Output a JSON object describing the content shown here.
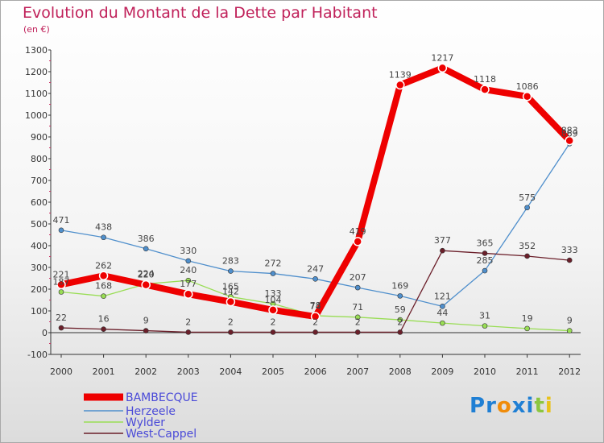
{
  "title": "Evolution du Montant de la Dette par Habitant",
  "subtitle": "(en €)",
  "brand": {
    "text": "Proxiti",
    "colors": [
      "#1f7fd4",
      "#1f7fd4",
      "#f08c0a",
      "#1f7fd4",
      "#1f7fd4",
      "#8cc63f",
      "#e8c21a"
    ]
  },
  "chart_data": {
    "type": "line",
    "title": "Evolution du Montant de la Dette par Habitant",
    "subtitle": "(en €)",
    "xlabel": "",
    "ylabel": "",
    "x": [
      "2000",
      "2001",
      "2002",
      "2003",
      "2004",
      "2005",
      "2006",
      "2007",
      "2008",
      "2009",
      "2010",
      "2011",
      "2012"
    ],
    "ylim": [
      -100,
      1300
    ],
    "yticks": [
      -100,
      0,
      100,
      200,
      300,
      400,
      500,
      600,
      700,
      800,
      900,
      1000,
      1100,
      1200,
      1300
    ],
    "grid": false,
    "legend": "bottom-left",
    "series": [
      {
        "name": "BAMBECQUE",
        "color": "#ee0000",
        "values": [
          221,
          262,
          220,
          177,
          142,
          104,
          74,
          419,
          1139,
          1217,
          1118,
          1086,
          883
        ]
      },
      {
        "name": "Herzeele",
        "color": "#4f8fcc",
        "values": [
          471,
          438,
          386,
          330,
          283,
          272,
          247,
          207,
          169,
          121,
          285,
          575,
          869
        ]
      },
      {
        "name": "Wylder",
        "color": "#99dd55",
        "values": [
          187,
          168,
          224,
          240,
          165,
          133,
          78,
          71,
          59,
          44,
          31,
          19,
          9
        ]
      },
      {
        "name": "West-Cappel",
        "color": "#6b1f2a",
        "values": [
          22,
          16,
          9,
          2,
          2,
          2,
          2,
          2,
          2,
          377,
          365,
          352,
          333
        ]
      }
    ]
  }
}
